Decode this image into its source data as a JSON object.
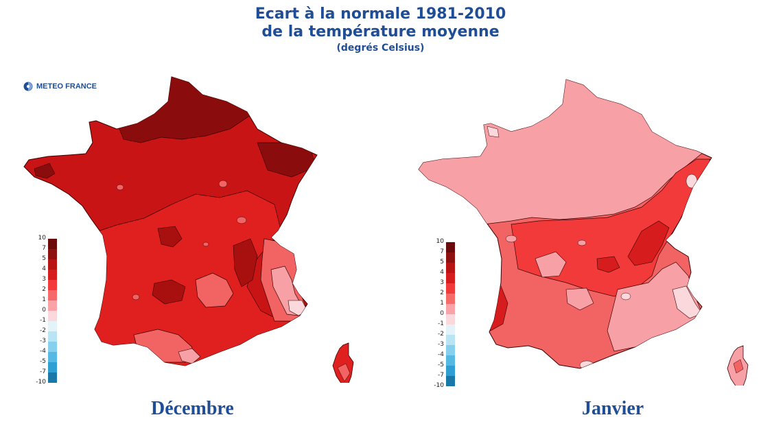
{
  "title": {
    "line1": "Ecart à la normale 1981-2010",
    "line2": "de la température moyenne",
    "line3": "(degrés Celsius)"
  },
  "logo": {
    "text": "METEO FRANCE",
    "icon": "meteo-france-logo-icon"
  },
  "legend": {
    "labels": [
      "10",
      "7",
      "5",
      "4",
      "3",
      "2",
      "1",
      "0",
      "-1",
      "-2",
      "-3",
      "-4",
      "-5",
      "-7",
      "-10"
    ],
    "colors": [
      "#6b0a0a",
      "#8e1010",
      "#b81414",
      "#d61c1c",
      "#f23a3a",
      "#f66a6a",
      "#f9a3a8",
      "#fbd8dc",
      "#e4f3f8",
      "#b8e4f4",
      "#86d0ee",
      "#55b9e4",
      "#2f9fd3",
      "#1a78a8"
    ]
  },
  "maps": [
    {
      "month": "Décembre",
      "dominant_color": "#d81a1a"
    },
    {
      "month": "Janvier",
      "dominant_color": "#f23a3a"
    }
  ],
  "colors": {
    "title": "#1f4e96"
  }
}
